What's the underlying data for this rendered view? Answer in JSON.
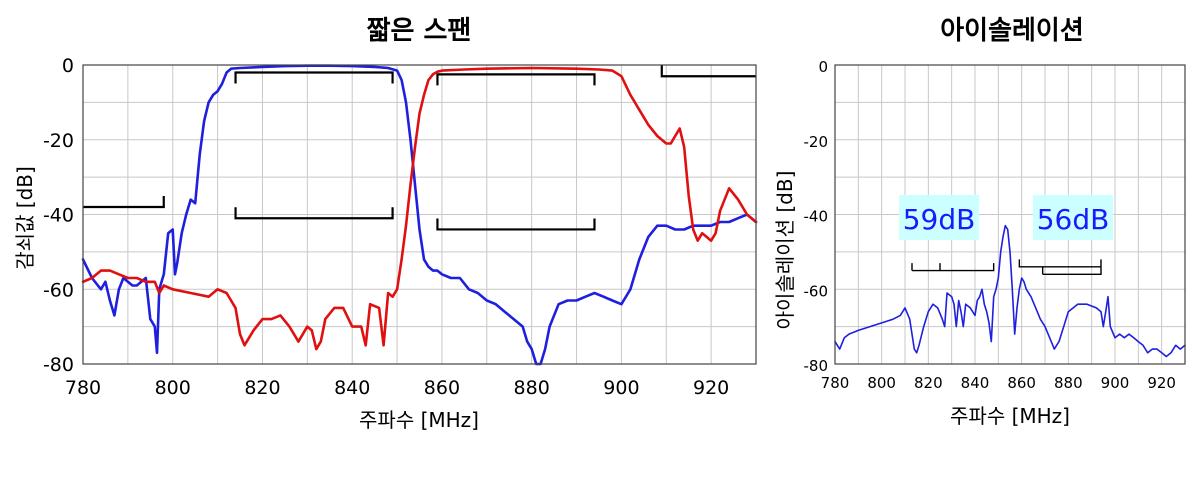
{
  "chart_data": [
    {
      "type": "line",
      "title": "짧은 스팬",
      "xlabel": "주파수 [MHz]",
      "ylabel": "감쇠값 [dB]",
      "xlim": [
        780,
        930
      ],
      "ylim": [
        -80,
        0
      ],
      "xticks": [
        780,
        800,
        820,
        840,
        860,
        880,
        900,
        920
      ],
      "yticks": [
        0,
        -20,
        -40,
        -60,
        -80
      ],
      "grid": true,
      "series": [
        {
          "color": "#1f1fdf",
          "x": [
            780,
            782,
            784,
            785,
            786,
            787,
            788,
            789,
            790,
            791,
            792,
            793,
            794,
            795,
            796,
            796.5,
            797,
            798,
            799,
            800,
            800.5,
            801,
            802,
            803,
            804,
            805,
            806,
            807,
            808,
            809,
            810,
            811,
            812,
            813,
            815,
            820,
            825,
            830,
            835,
            840,
            845,
            848,
            850,
            851,
            852,
            853,
            854,
            855,
            856,
            857,
            858,
            859,
            860,
            862,
            864,
            866,
            868,
            870,
            872,
            874,
            876,
            878,
            879,
            880,
            881,
            882,
            883,
            884,
            886,
            888,
            890,
            892,
            894,
            896,
            898,
            900,
            902,
            904,
            906,
            908,
            910,
            912,
            914,
            916,
            918,
            920,
            922,
            924,
            926,
            928,
            930
          ],
          "y": [
            -52,
            -57,
            -60,
            -58,
            -63,
            -67,
            -60,
            -57,
            -58,
            -59,
            -59,
            -58,
            -57,
            -68,
            -70,
            -77,
            -60,
            -56,
            -45,
            -44,
            -56,
            -53,
            -45,
            -40,
            -36,
            -37,
            -24,
            -15,
            -10,
            -8,
            -7,
            -5,
            -2,
            -1,
            -0.8,
            -0.5,
            -0.3,
            -0.2,
            -0.2,
            -0.3,
            -0.5,
            -0.8,
            -1.5,
            -4,
            -10,
            -20,
            -32,
            -44,
            -52,
            -54,
            -55,
            -55,
            -56,
            -57,
            -57,
            -60,
            -61,
            -63,
            -64,
            -66,
            -68,
            -70,
            -74,
            -76,
            -80,
            -80,
            -76,
            -70,
            -64,
            -63,
            -63,
            -62,
            -61,
            -62,
            -63,
            -64,
            -60,
            -52,
            -46,
            -43,
            -43,
            -44,
            -44,
            -43,
            -43,
            -43,
            -42,
            -42,
            -41,
            -40,
            -42
          ]
        },
        {
          "color": "#e01010",
          "x": [
            780,
            782,
            784,
            786,
            788,
            790,
            792,
            794,
            796,
            797,
            798,
            800,
            804,
            808,
            810,
            812,
            814,
            815,
            816,
            818,
            820,
            822,
            824,
            826,
            828,
            830,
            831,
            832,
            833,
            834,
            836,
            838,
            840,
            842,
            843,
            844,
            846,
            847,
            848,
            849,
            850,
            851,
            852,
            853,
            854,
            855,
            856,
            857,
            858,
            859,
            860,
            865,
            870,
            880,
            890,
            895,
            898,
            900,
            902,
            904,
            906,
            908,
            910,
            911,
            912,
            913,
            914,
            915,
            916,
            917,
            918,
            919,
            920,
            921,
            922,
            924,
            926,
            928,
            930
          ],
          "y": [
            -58,
            -57,
            -55,
            -55,
            -56,
            -57,
            -57,
            -58,
            -58,
            -61,
            -59,
            -60,
            -61,
            -62,
            -60,
            -61,
            -65,
            -72,
            -75,
            -71,
            -68,
            -68,
            -67,
            -70,
            -74,
            -70,
            -71,
            -76,
            -74,
            -68,
            -65,
            -65,
            -70,
            -70,
            -75,
            -64,
            -65,
            -75,
            -61,
            -62,
            -60,
            -52,
            -43,
            -32,
            -22,
            -13,
            -8,
            -4,
            -2.5,
            -1.8,
            -1.5,
            -1.2,
            -1,
            -0.8,
            -1,
            -1.2,
            -1.5,
            -3,
            -8,
            -12,
            -16,
            -19,
            -21,
            -21,
            -19,
            -17,
            -22,
            -35,
            -44,
            -47,
            -45,
            -46,
            -47,
            -45,
            -39,
            -33,
            -36,
            -40,
            -42
          ]
        }
      ],
      "annotations": {
        "brackets": [
          {
            "x1": 780,
            "x2": 798,
            "y": -38,
            "tick": "down-right"
          },
          {
            "x1": 814,
            "x2": 849,
            "y": -2,
            "tick": "down"
          },
          {
            "x1": 814,
            "x2": 849,
            "y": -41,
            "tick": "up"
          },
          {
            "x1": 859,
            "x2": 894,
            "y": -2.5,
            "tick": "down"
          },
          {
            "x1": 859,
            "x2": 894,
            "y": -44,
            "tick": "up"
          },
          {
            "x1": 909,
            "x2": 930,
            "y": -3,
            "tick": "up-left"
          }
        ]
      }
    },
    {
      "type": "line",
      "title": "아이솔레이션",
      "xlabel": "주파수 [MHz]",
      "ylabel": "아이솔레이션 [dB]",
      "xlim": [
        780,
        930
      ],
      "ylim": [
        -80,
        0
      ],
      "xticks": [
        780,
        800,
        820,
        840,
        860,
        880,
        900,
        920
      ],
      "yticks": [
        0,
        -20,
        -40,
        -60,
        -80
      ],
      "grid": true,
      "series": [
        {
          "color": "#1f1fdf",
          "x": [
            780,
            782,
            784,
            786,
            790,
            795,
            800,
            805,
            808,
            810,
            812,
            813,
            814,
            815,
            816,
            818,
            820,
            822,
            824,
            826,
            827,
            828,
            830,
            831,
            832,
            833,
            834,
            835,
            836,
            838,
            840,
            841,
            842,
            843,
            844,
            845,
            846,
            847,
            848,
            849,
            850,
            851,
            852,
            853,
            854,
            855,
            856,
            857,
            858,
            859,
            860,
            861,
            862,
            864,
            866,
            868,
            870,
            872,
            874,
            876,
            878,
            880,
            884,
            888,
            892,
            894,
            895,
            896,
            897,
            898,
            900,
            902,
            904,
            906,
            908,
            910,
            912,
            914,
            916,
            918,
            920,
            922,
            924,
            926,
            928,
            930
          ],
          "y": [
            -74,
            -76,
            -73,
            -72,
            -71,
            -70,
            -69,
            -68,
            -67,
            -65,
            -68,
            -72,
            -76,
            -77,
            -75,
            -70,
            -66,
            -64,
            -65,
            -68,
            -70,
            -61,
            -62,
            -64,
            -70,
            -63,
            -66,
            -70,
            -64,
            -65,
            -67,
            -63,
            -62,
            -60,
            -64,
            -66,
            -69,
            -74,
            -62,
            -60,
            -57,
            -50,
            -46,
            -43,
            -44,
            -50,
            -60,
            -72,
            -65,
            -60,
            -57,
            -58,
            -60,
            -62,
            -65,
            -68,
            -70,
            -73,
            -76,
            -74,
            -70,
            -66,
            -64,
            -64,
            -65,
            -66,
            -70,
            -66,
            -62,
            -70,
            -73,
            -72,
            -73,
            -72,
            -73,
            -74,
            -75,
            -77,
            -76,
            -76,
            -77,
            -78,
            -77,
            -75,
            -76,
            -75
          ]
        }
      ],
      "annotations": {
        "labels": [
          "59dB",
          "56dB"
        ],
        "label_bg": "#ccffff",
        "label_color": "#1a1aff"
      }
    }
  ]
}
